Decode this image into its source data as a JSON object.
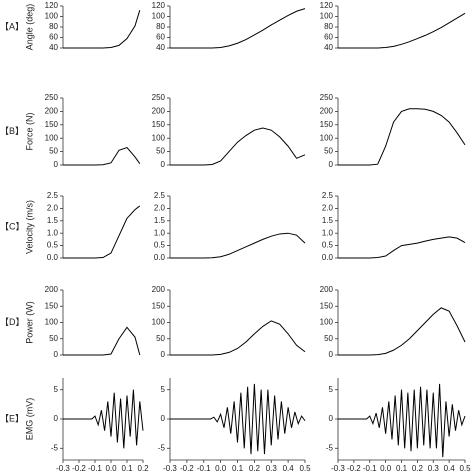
{
  "chart_data": [
    {
      "type": "line",
      "panel_label": "【A】",
      "ylabel": "Angle (deg)",
      "x": [
        -0.3,
        -0.25,
        -0.2,
        -0.15,
        -0.1,
        -0.05,
        0,
        0.05,
        0.1,
        0.15,
        0.18
      ],
      "series": [
        {
          "color": "#000000",
          "values": [
            40,
            40,
            40,
            40,
            40,
            40,
            41,
            45,
            58,
            82,
            112
          ]
        }
      ],
      "xlim": [
        -0.3,
        0.2
      ],
      "ylim": [
        40,
        120
      ],
      "yticks": [
        40,
        60,
        80,
        100,
        120
      ]
    },
    {
      "type": "line",
      "x": [
        -0.3,
        -0.25,
        -0.2,
        -0.15,
        -0.1,
        -0.05,
        0,
        0.05,
        0.1,
        0.15,
        0.2,
        0.25,
        0.3,
        0.35,
        0.4,
        0.45,
        0.5
      ],
      "series": [
        {
          "color": "#000000",
          "values": [
            40,
            40,
            40,
            40,
            40,
            40,
            41,
            44,
            49,
            56,
            65,
            74,
            84,
            93,
            102,
            110,
            115
          ]
        }
      ],
      "xlim": [
        -0.3,
        0.5
      ],
      "ylim": [
        40,
        120
      ],
      "yticks": [
        40,
        60,
        80,
        100,
        120
      ]
    },
    {
      "type": "line",
      "x": [
        -0.3,
        -0.25,
        -0.2,
        -0.15,
        -0.1,
        -0.05,
        0,
        0.05,
        0.1,
        0.15,
        0.2,
        0.25,
        0.3,
        0.35,
        0.4,
        0.45,
        0.5
      ],
      "series": [
        {
          "color": "#000000",
          "values": [
            40,
            40,
            40,
            40,
            40,
            40,
            41,
            43,
            47,
            52,
            58,
            64,
            71,
            79,
            88,
            97,
            106
          ]
        }
      ],
      "xlim": [
        -0.3,
        0.5
      ],
      "ylim": [
        40,
        120
      ],
      "yticks": [
        40,
        60,
        80,
        100,
        120
      ]
    },
    {
      "type": "line",
      "panel_label": "【B】",
      "ylabel": "Force (N)",
      "x": [
        -0.3,
        -0.25,
        -0.2,
        -0.15,
        -0.1,
        -0.05,
        0,
        0.05,
        0.1,
        0.15,
        0.18
      ],
      "series": [
        {
          "color": "#000000",
          "values": [
            0,
            0,
            0,
            0,
            0,
            1,
            8,
            55,
            65,
            30,
            5
          ]
        }
      ],
      "xlim": [
        -0.3,
        0.2
      ],
      "ylim": [
        0,
        250
      ],
      "yticks": [
        0,
        50,
        100,
        150,
        200,
        250
      ]
    },
    {
      "type": "line",
      "x": [
        -0.3,
        -0.25,
        -0.2,
        -0.15,
        -0.1,
        -0.05,
        0,
        0.05,
        0.1,
        0.15,
        0.2,
        0.25,
        0.3,
        0.35,
        0.4,
        0.45,
        0.5
      ],
      "series": [
        {
          "color": "#000000",
          "values": [
            0,
            0,
            0,
            0,
            0,
            2,
            15,
            50,
            85,
            110,
            130,
            138,
            130,
            105,
            70,
            25,
            38
          ]
        }
      ],
      "xlim": [
        -0.3,
        0.5
      ],
      "ylim": [
        0,
        250
      ],
      "yticks": [
        0,
        50,
        100,
        150,
        200,
        250
      ]
    },
    {
      "type": "line",
      "x": [
        -0.3,
        -0.25,
        -0.2,
        -0.15,
        -0.1,
        -0.05,
        0,
        0.05,
        0.1,
        0.15,
        0.2,
        0.25,
        0.3,
        0.35,
        0.4,
        0.45,
        0.5
      ],
      "series": [
        {
          "color": "#000000",
          "values": [
            0,
            0,
            0,
            0,
            0,
            3,
            70,
            160,
            200,
            210,
            210,
            208,
            200,
            185,
            160,
            120,
            75
          ]
        }
      ],
      "xlim": [
        -0.3,
        0.5
      ],
      "ylim": [
        0,
        250
      ],
      "yticks": [
        0,
        50,
        100,
        150,
        200,
        250
      ]
    },
    {
      "type": "line",
      "panel_label": "【C】",
      "ylabel": "Velocity (m/s)",
      "x": [
        -0.3,
        -0.25,
        -0.2,
        -0.15,
        -0.1,
        -0.05,
        0,
        0.05,
        0.1,
        0.15,
        0.18
      ],
      "series": [
        {
          "color": "#000000",
          "values": [
            0,
            0,
            0,
            0,
            0,
            0.02,
            0.2,
            0.9,
            1.6,
            1.95,
            2.1
          ]
        }
      ],
      "xlim": [
        -0.3,
        0.2
      ],
      "ylim": [
        0,
        2.5
      ],
      "yticks": [
        {
          "value": 0,
          "label": "0.0"
        },
        0.5,
        {
          "value": 1,
          "label": "1.0"
        },
        1.5,
        {
          "value": 2,
          "label": "2.0"
        },
        2.5
      ]
    },
    {
      "type": "line",
      "x": [
        -0.3,
        -0.25,
        -0.2,
        -0.15,
        -0.1,
        -0.05,
        0,
        0.05,
        0.1,
        0.15,
        0.2,
        0.25,
        0.3,
        0.35,
        0.4,
        0.45,
        0.5
      ],
      "series": [
        {
          "color": "#000000",
          "values": [
            0,
            0,
            0,
            0,
            0,
            0.01,
            0.05,
            0.15,
            0.3,
            0.45,
            0.6,
            0.75,
            0.88,
            0.97,
            1.0,
            0.92,
            0.6
          ]
        }
      ],
      "xlim": [
        -0.3,
        0.5
      ],
      "ylim": [
        0,
        2.5
      ],
      "yticks": [
        {
          "value": 0,
          "label": "0.0"
        },
        0.5,
        {
          "value": 1,
          "label": "1.0"
        },
        1.5,
        {
          "value": 2,
          "label": "2.0"
        },
        2.5
      ]
    },
    {
      "type": "line",
      "x": [
        -0.3,
        -0.25,
        -0.2,
        -0.15,
        -0.1,
        -0.05,
        0,
        0.05,
        0.1,
        0.15,
        0.2,
        0.25,
        0.3,
        0.35,
        0.4,
        0.45,
        0.5
      ],
      "series": [
        {
          "color": "#000000",
          "values": [
            0,
            0,
            0,
            0,
            0,
            0.02,
            0.08,
            0.3,
            0.5,
            0.55,
            0.6,
            0.68,
            0.75,
            0.8,
            0.85,
            0.8,
            0.62
          ]
        }
      ],
      "xlim": [
        -0.3,
        0.5
      ],
      "ylim": [
        0,
        2.5
      ],
      "yticks": [
        {
          "value": 0,
          "label": "0.0"
        },
        0.5,
        {
          "value": 1,
          "label": "1.0"
        },
        1.5,
        {
          "value": 2,
          "label": "2.0"
        },
        2.5
      ]
    },
    {
      "type": "line",
      "panel_label": "【D】",
      "ylabel": "Power (W)",
      "x": [
        -0.3,
        -0.25,
        -0.2,
        -0.15,
        -0.1,
        -0.05,
        0,
        0.05,
        0.1,
        0.15,
        0.18
      ],
      "series": [
        {
          "color": "#000000",
          "values": [
            0,
            0,
            0,
            0,
            0,
            0,
            3,
            50,
            85,
            55,
            0
          ]
        }
      ],
      "xlim": [
        -0.3,
        0.2
      ],
      "ylim": [
        0,
        200
      ],
      "yticks": [
        0,
        50,
        100,
        150,
        200
      ]
    },
    {
      "type": "line",
      "x": [
        -0.3,
        -0.25,
        -0.2,
        -0.15,
        -0.1,
        -0.05,
        0,
        0.05,
        0.1,
        0.15,
        0.2,
        0.25,
        0.3,
        0.35,
        0.4,
        0.45,
        0.5
      ],
      "series": [
        {
          "color": "#000000",
          "values": [
            0,
            0,
            0,
            0,
            0,
            0,
            2,
            8,
            20,
            40,
            65,
            88,
            105,
            95,
            65,
            30,
            10
          ]
        }
      ],
      "xlim": [
        -0.3,
        0.5
      ],
      "ylim": [
        0,
        200
      ],
      "yticks": [
        0,
        50,
        100,
        150,
        200
      ]
    },
    {
      "type": "line",
      "x": [
        -0.3,
        -0.25,
        -0.2,
        -0.15,
        -0.1,
        -0.05,
        0,
        0.05,
        0.1,
        0.15,
        0.2,
        0.25,
        0.3,
        0.35,
        0.4,
        0.45,
        0.5
      ],
      "series": [
        {
          "color": "#000000",
          "values": [
            0,
            0,
            0,
            0,
            0,
            1,
            5,
            15,
            30,
            50,
            75,
            100,
            125,
            145,
            135,
            90,
            40
          ]
        }
      ],
      "xlim": [
        -0.3,
        0.5
      ],
      "ylim": [
        0,
        200
      ],
      "yticks": [
        0,
        50,
        100,
        150,
        200
      ]
    },
    {
      "type": "line",
      "panel_label": "【E】",
      "ylabel": "EMG (mV)",
      "x": [
        -0.3,
        -0.28,
        -0.26,
        -0.24,
        -0.22,
        -0.2,
        -0.18,
        -0.16,
        -0.14,
        -0.12,
        -0.1,
        -0.08,
        -0.06,
        -0.04,
        -0.02,
        0,
        0.02,
        0.04,
        0.06,
        0.08,
        0.1,
        0.12,
        0.14,
        0.16,
        0.18,
        0.2
      ],
      "series": [
        {
          "color": "#000000",
          "values": [
            0,
            0,
            0,
            0,
            0,
            0,
            0,
            0,
            0,
            0,
            0.5,
            -1,
            1.5,
            -2,
            3,
            -3,
            4.5,
            -4,
            3.5,
            -5,
            4,
            -3,
            5,
            -4.5,
            3,
            -2
          ]
        }
      ],
      "xlim": [
        -0.3,
        0.2
      ],
      "ylim": [
        -7,
        7
      ],
      "yticks": [
        -5,
        0,
        5
      ],
      "xticks": [
        -0.3,
        -0.2,
        -0.1,
        {
          "value": 0,
          "label": "0.0"
        },
        0.1,
        0.2
      ]
    },
    {
      "type": "line",
      "x": [
        -0.3,
        -0.28,
        -0.26,
        -0.24,
        -0.22,
        -0.2,
        -0.18,
        -0.16,
        -0.14,
        -0.12,
        -0.1,
        -0.08,
        -0.06,
        -0.04,
        -0.02,
        0,
        0.02,
        0.04,
        0.06,
        0.08,
        0.1,
        0.12,
        0.14,
        0.16,
        0.18,
        0.2,
        0.22,
        0.24,
        0.26,
        0.28,
        0.3,
        0.32,
        0.34,
        0.36,
        0.38,
        0.4,
        0.42,
        0.44,
        0.46,
        0.48,
        0.5
      ],
      "series": [
        {
          "color": "#000000",
          "values": [
            0,
            0,
            0,
            0,
            0,
            0,
            0,
            0,
            0,
            0,
            0,
            0,
            0,
            0.3,
            -0.5,
            0.8,
            -1.5,
            2,
            -2.5,
            3,
            -4,
            4.5,
            -5,
            5.5,
            -6,
            6,
            -5.5,
            5,
            -6,
            5,
            -4.5,
            4,
            -3.5,
            3,
            -2.5,
            2,
            -1.5,
            1.2,
            -0.8,
            0.5,
            -0.3
          ]
        }
      ],
      "xlim": [
        -0.3,
        0.5
      ],
      "ylim": [
        -7,
        7
      ],
      "yticks": [
        -5,
        0,
        5
      ],
      "xticks": [
        -0.3,
        -0.2,
        -0.1,
        {
          "value": 0,
          "label": "0.0"
        },
        0.1,
        0.2,
        0.3,
        0.4,
        0.5
      ]
    },
    {
      "type": "line",
      "x": [
        -0.3,
        -0.28,
        -0.26,
        -0.24,
        -0.22,
        -0.2,
        -0.18,
        -0.16,
        -0.14,
        -0.12,
        -0.1,
        -0.08,
        -0.06,
        -0.04,
        -0.02,
        0,
        0.02,
        0.04,
        0.06,
        0.08,
        0.1,
        0.12,
        0.14,
        0.16,
        0.18,
        0.2,
        0.22,
        0.24,
        0.26,
        0.28,
        0.3,
        0.32,
        0.34,
        0.36,
        0.38,
        0.4,
        0.42,
        0.44,
        0.46,
        0.48,
        0.5
      ],
      "series": [
        {
          "color": "#000000",
          "values": [
            0,
            0,
            0,
            0,
            0,
            0,
            0,
            0,
            0,
            0,
            0.5,
            -0.8,
            1,
            -1.5,
            2,
            -2.5,
            3,
            -3.5,
            4,
            -4.5,
            5,
            -5,
            4.5,
            -5.5,
            5,
            -5,
            5.5,
            -4.5,
            5,
            -5,
            4.5,
            -5,
            6,
            -6.5,
            3,
            -3,
            2.5,
            -2,
            1.5,
            -1,
            0.5
          ]
        }
      ],
      "xlim": [
        -0.3,
        0.5
      ],
      "ylim": [
        -7,
        7
      ],
      "yticks": [
        -5,
        0,
        5
      ],
      "xticks": [
        -0.3,
        -0.2,
        -0.1,
        {
          "value": 0,
          "label": "0.0"
        },
        0.1,
        0.2,
        0.3,
        0.4,
        0.5
      ]
    }
  ]
}
